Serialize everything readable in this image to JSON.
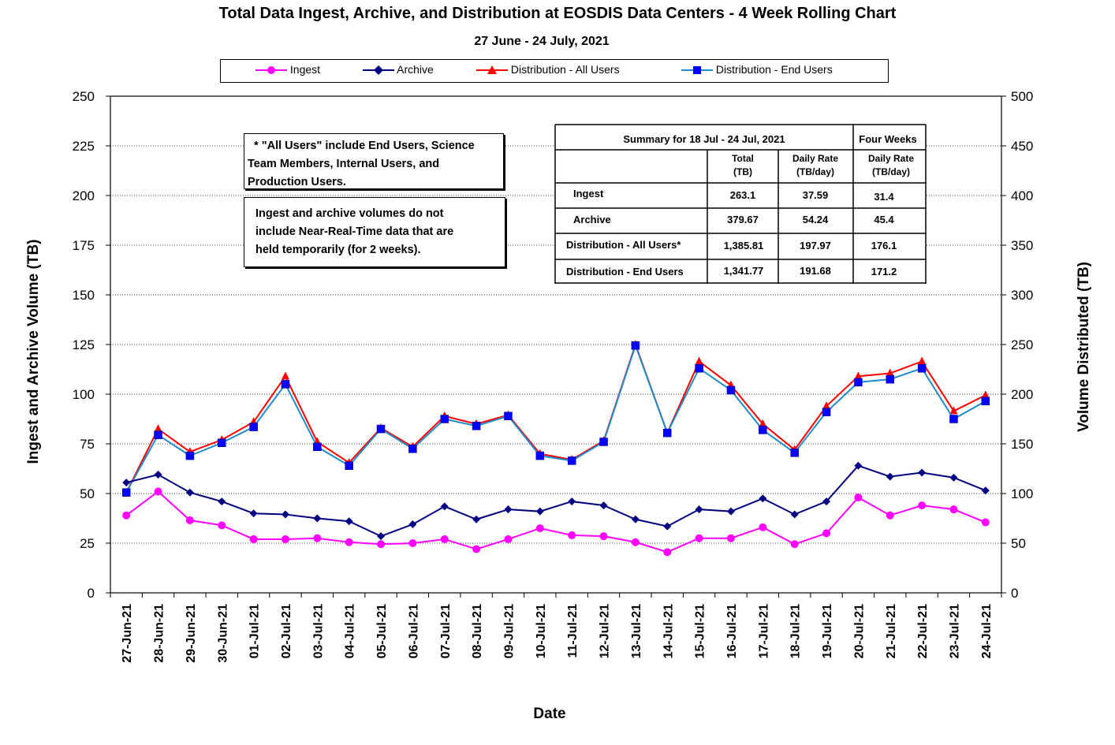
{
  "chart_data": {
    "type": "line",
    "title": "Total Data Ingest, Archive, and  Distribution at EOSDIS Data Centers - 4 Week Rolling Chart",
    "subtitle": "27  June   - 24  July,  2021",
    "xlabel": "Date",
    "ylabel_left": "Ingest and Archive Volume (TB)",
    "ylabel_right": "Volume Distributed (TB)",
    "ylim_left": [
      0,
      250
    ],
    "ylim_right": [
      0,
      500
    ],
    "yticks_left": [
      "0",
      "25",
      "50",
      "75",
      "100",
      "125",
      "150",
      "175",
      "200",
      "225",
      "250"
    ],
    "yticks_right": [
      "0",
      "50",
      "100",
      "150",
      "200",
      "250",
      "300",
      "350",
      "400",
      "450",
      "500"
    ],
    "grid": true,
    "legend_position": "top",
    "categories": [
      "27-Jun-21",
      "28-Jun-21",
      "29-Jun-21",
      "30-Jun-21",
      "01-Jul-21",
      "02-Jul-21",
      "03-Jul-21",
      "04-Jul-21",
      "05-Jul-21",
      "06-Jul-21",
      "07-Jul-21",
      "08-Jul-21",
      "09-Jul-21",
      "10-Jul-21",
      "11-Jul-21",
      "12-Jul-21",
      "13-Jul-21",
      "14-Jul-21",
      "15-Jul-21",
      "16-Jul-21",
      "17-Jul-21",
      "18-Jul-21",
      "19-Jul-21",
      "20-Jul-21",
      "21-Jul-21",
      "22-Jul-21",
      "23-Jul-21",
      "24-Jul-21"
    ],
    "series": [
      {
        "name": "Ingest",
        "axis": "left",
        "color": "#ff00ff",
        "marker": "circle",
        "values": [
          39,
          51,
          36.5,
          34,
          27,
          27,
          27.5,
          25.5,
          24.5,
          25,
          27,
          22,
          27,
          32.5,
          29,
          28.5,
          25.5,
          20.5,
          27.5,
          27.5,
          33,
          24.5,
          30,
          48,
          39,
          44,
          42,
          35.5
        ]
      },
      {
        "name": "Archive",
        "axis": "left",
        "color": "#000080",
        "marker": "diamond",
        "values": [
          55.5,
          59.5,
          50.5,
          46,
          40,
          39.5,
          37.5,
          36,
          28.5,
          34.5,
          43.5,
          37,
          42,
          41,
          46,
          44,
          37,
          33.5,
          42,
          41,
          47.5,
          39.5,
          46,
          64,
          58.5,
          60.5,
          58,
          51.5
        ]
      },
      {
        "name": "Distribution - All Users",
        "axis": "right",
        "color": "#ff0000",
        "marker": "triangle",
        "values": [
          101,
          165,
          142,
          154,
          172,
          218,
          152,
          131,
          166,
          147,
          178,
          170,
          179,
          140,
          134,
          153,
          250,
          161,
          233,
          209,
          170,
          144,
          188,
          218,
          221,
          233,
          183,
          199
        ]
      },
      {
        "name": "Distribution - End Users",
        "axis": "right",
        "color": "#0000ff",
        "line_color": "#1e8cc8",
        "marker": "square",
        "values": [
          101,
          159,
          138,
          151,
          167,
          210,
          147,
          128,
          165,
          145,
          175,
          168,
          178,
          138,
          133,
          152,
          249,
          161,
          226,
          204,
          164,
          141,
          182,
          212,
          215,
          226,
          175,
          193
        ]
      }
    ]
  },
  "notes": {
    "note1_lines": [
      "  * \"All Users\" include End Users, Science",
      "Team Members,  Internal Users, and",
      "Production Users."
    ],
    "note2_lines": [
      "Ingest and archive volumes do not",
      "include Near-Real-Time data that are",
      "held temporarily (for 2 weeks)."
    ]
  },
  "summary_table": {
    "header": "Summary  for  18  Jul   - 24  Jul,  2021",
    "four_weeks": "Four Weeks",
    "col_total": [
      "Total",
      "(TB)"
    ],
    "col_daily": [
      "Daily Rate",
      "(TB/day)"
    ],
    "col_daily4": [
      "Daily Rate",
      "(TB/day)"
    ],
    "rows": [
      {
        "label": "Ingest",
        "total": "263.1",
        "daily": "37.59",
        "four": "31.4"
      },
      {
        "label": "Archive",
        "total": "379.67",
        "daily": "54.24",
        "four": "45.4"
      },
      {
        "label": "Distribution - All Users*",
        "total": "1,385.81",
        "daily": "197.97",
        "four": "176.1"
      },
      {
        "label": "Distribution - End Users",
        "total": "1,341.77",
        "daily": "191.68",
        "four": "171.2"
      }
    ]
  }
}
